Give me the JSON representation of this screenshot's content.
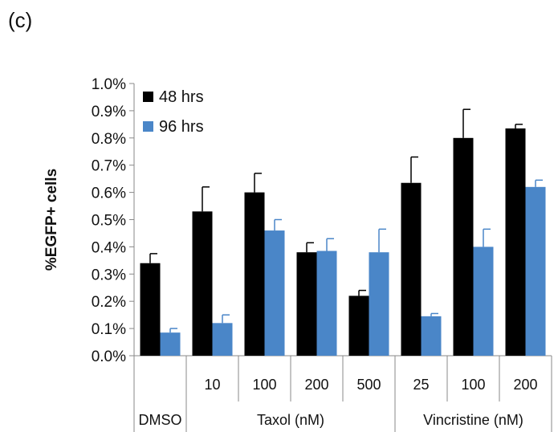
{
  "panel_label": "(c)",
  "chart_data": {
    "type": "bar",
    "ylabel": "%EGFP+ cells",
    "ylim": [
      0,
      1.0
    ],
    "yticks": [
      "0.0%",
      "0.1%",
      "0.2%",
      "0.3%",
      "0.4%",
      "0.5%",
      "0.6%",
      "0.7%",
      "0.8%",
      "0.9%",
      "1.0%"
    ],
    "categories": [
      "",
      "10",
      "100",
      "200",
      "500",
      "25",
      "100",
      "200"
    ],
    "groups": [
      {
        "label": "DMSO",
        "span": [
          0,
          0
        ]
      },
      {
        "label": "Taxol (nM)",
        "span": [
          1,
          4
        ]
      },
      {
        "label": "Vincristine (nM)",
        "span": [
          5,
          7
        ]
      }
    ],
    "series": [
      {
        "name": "48 hrs",
        "color": "#000000",
        "values": [
          0.34,
          0.53,
          0.6,
          0.38,
          0.22,
          0.635,
          0.8,
          0.835
        ],
        "errors": [
          0.035,
          0.09,
          0.07,
          0.035,
          0.02,
          0.095,
          0.105,
          0.015
        ]
      },
      {
        "name": "96 hrs",
        "color": "#4a86c8",
        "values": [
          0.085,
          0.12,
          0.46,
          0.385,
          0.38,
          0.145,
          0.4,
          0.62
        ],
        "errors": [
          0.015,
          0.03,
          0.04,
          0.045,
          0.085,
          0.01,
          0.065,
          0.025
        ]
      }
    ],
    "legend": "top-left",
    "grid": false
  }
}
